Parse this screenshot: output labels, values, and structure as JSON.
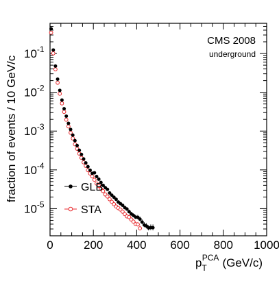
{
  "chart_data": {
    "type": "scatter",
    "xlabel": "p",
    "xlabel_sup": "PCA",
    "xlabel_sub": "T",
    "xlabel_unit": "(GeV/c)",
    "ylabel": "fraction of events / 10 GeV/c",
    "xlim": [
      0,
      1000
    ],
    "ylim": [
      2e-06,
      0.6
    ],
    "yscale": "log",
    "x_ticks": [
      0,
      200,
      400,
      600,
      800,
      1000
    ],
    "y_ticks": [
      {
        "value": 0.1,
        "base": "10",
        "exp": "-1"
      },
      {
        "value": 0.01,
        "base": "10",
        "exp": "-2"
      },
      {
        "value": 0.001,
        "base": "10",
        "exp": "-3"
      },
      {
        "value": 0.0001,
        "base": "10",
        "exp": "-4"
      },
      {
        "value": 1e-05,
        "base": "10",
        "exp": "-5"
      }
    ],
    "annotations": {
      "title": "CMS 2008",
      "subtitle": "underground"
    },
    "legend_position": "bottom-left",
    "series": [
      {
        "name": "GLB",
        "marker": "filled-circle",
        "color": "#000000"
      },
      {
        "name": "STA",
        "marker": "open-circle",
        "color": "#e8272b"
      }
    ],
    "model": {
      "A": 0.85,
      "x0": 25,
      "p": 4.3
    },
    "bin_width": 10
  }
}
